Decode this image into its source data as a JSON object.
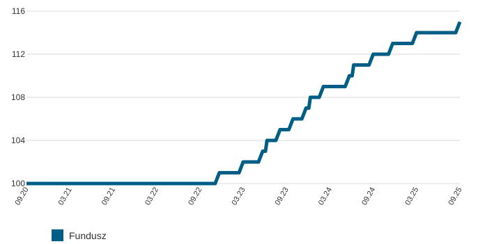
{
  "chart_data": {
    "type": "line",
    "title": "",
    "xlabel": "",
    "ylabel": "",
    "ylim": [
      100,
      116
    ],
    "y_ticks": [
      100,
      104,
      108,
      112,
      116
    ],
    "x_tick_labels": [
      "09.20",
      "03.21",
      "09.21",
      "03.22",
      "09.22",
      "03.23",
      "09.23",
      "03.24",
      "09.24",
      "03.25",
      "09.25"
    ],
    "grid": "horizontal",
    "legend_position": "bottom-left",
    "colors": {
      "series": "#005e86",
      "grid": "#d9d9d9",
      "axis_text": "#333333"
    },
    "series": [
      {
        "name": "Fundusz",
        "x": [
          "09.20",
          "03.21",
          "09.21",
          "03.22",
          "09.22",
          "09.22",
          "03.23",
          "03.23",
          "03.23",
          "09.23",
          "09.23",
          "09.23",
          "09.23",
          "03.24",
          "03.24",
          "03.24",
          "03.24",
          "09.24",
          "09.24",
          "09.24",
          "03.25",
          "03.25",
          "03.25",
          "09.25"
        ],
        "values": [
          100,
          100,
          100,
          100,
          100,
          101,
          101,
          102,
          103,
          104,
          105,
          106,
          107,
          108,
          109,
          109,
          110,
          111,
          112,
          113,
          113,
          114,
          114,
          115
        ]
      }
    ]
  }
}
